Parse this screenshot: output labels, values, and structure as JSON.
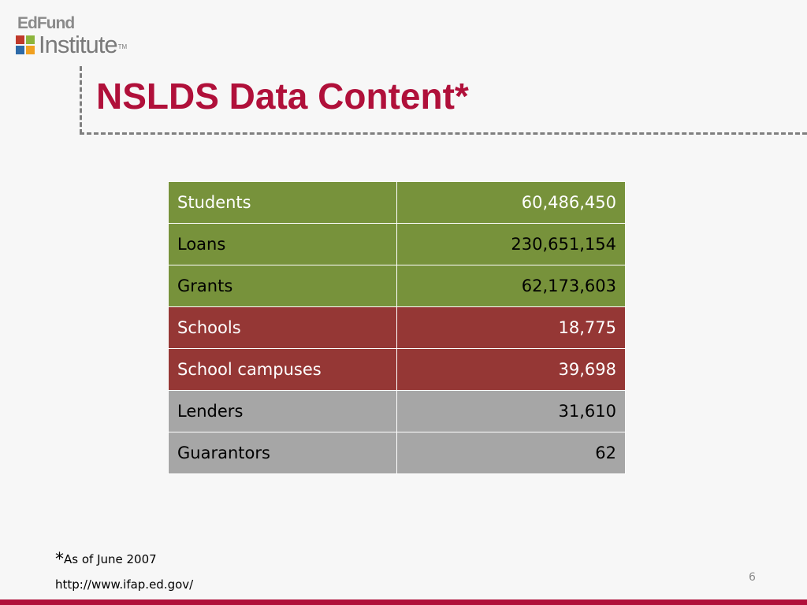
{
  "logo": {
    "top_text": "EdFund",
    "bottom_text": "Institute",
    "trademark": "TM",
    "colors": [
      "#c0392b",
      "#8cb43c",
      "#2d6aa8",
      "#f0a020"
    ]
  },
  "slide": {
    "title": "NSLDS Data Content*",
    "title_color": "#b0103a",
    "page_number": "6"
  },
  "table": {
    "rows": [
      {
        "label": "Students",
        "value": "60,486,450",
        "bg": "#77923b",
        "fg": "#ffffff"
      },
      {
        "label": "Loans",
        "value": "230,651,154",
        "bg": "#77923b",
        "fg": "#000000"
      },
      {
        "label": "Grants",
        "value": "62,173,603",
        "bg": "#77923b",
        "fg": "#000000"
      },
      {
        "label": "Schools",
        "value": "18,775",
        "bg": "#953735",
        "fg": "#ffffff"
      },
      {
        "label": "School campuses",
        "value": "39,698",
        "bg": "#953735",
        "fg": "#ffffff"
      },
      {
        "label": "Lenders",
        "value": "31,610",
        "bg": "#a6a6a6",
        "fg": "#000000"
      },
      {
        "label": "Guarantors",
        "value": "62",
        "bg": "#a6a6a6",
        "fg": "#000000"
      }
    ]
  },
  "footnote": {
    "star": "*",
    "text": "As of June 2007",
    "url": "http://www.ifap.ed.gov/"
  },
  "bottom_bar_color": "#b0103a"
}
